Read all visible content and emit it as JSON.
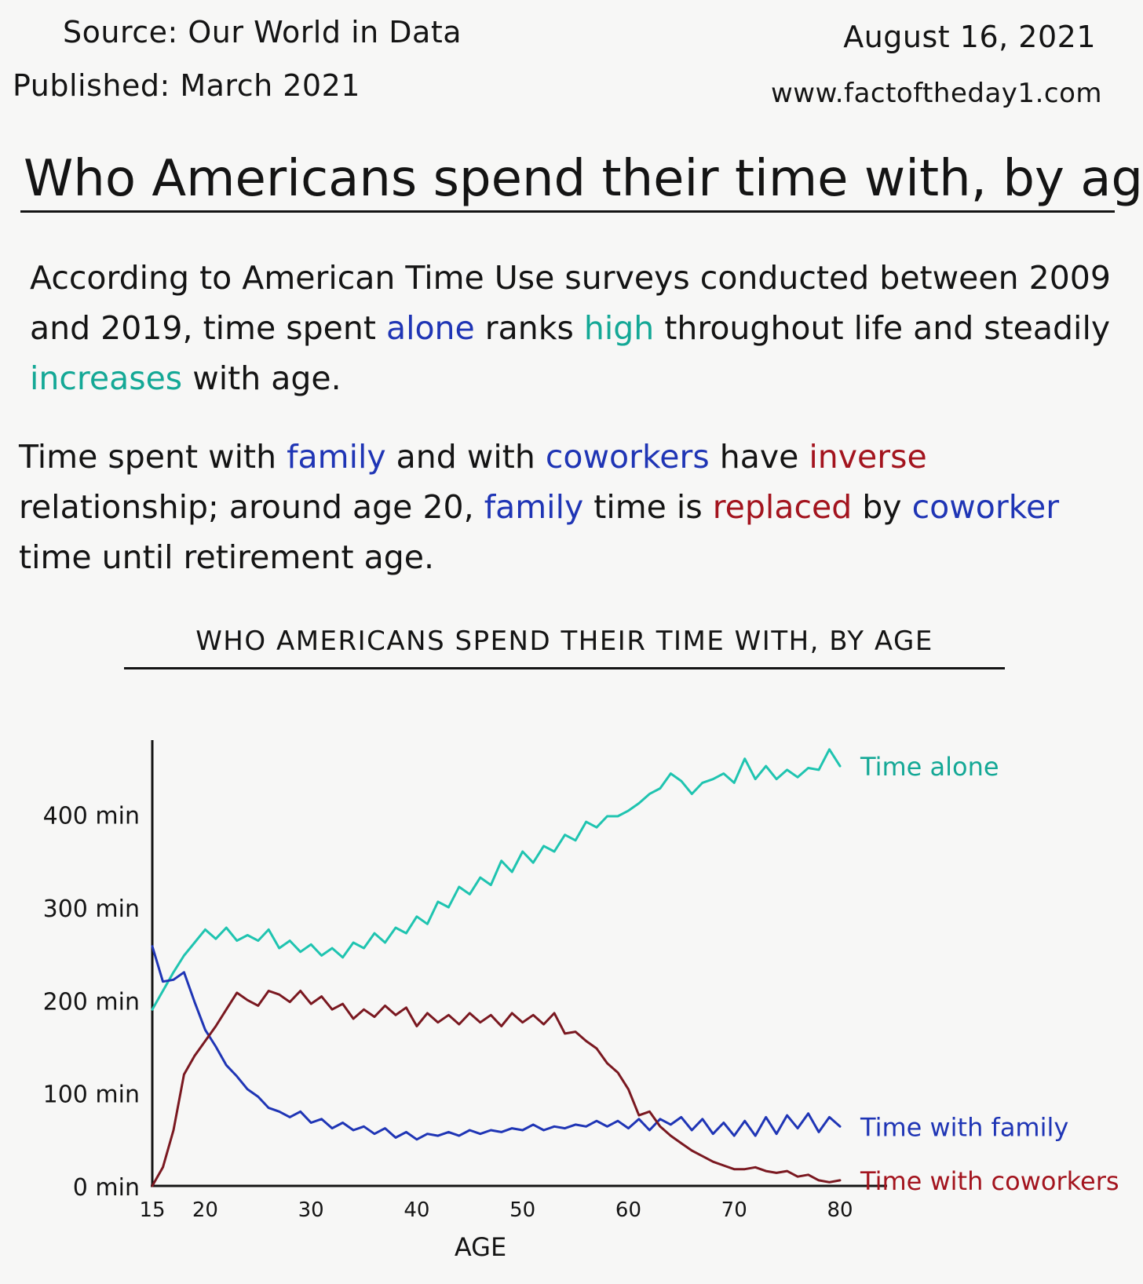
{
  "header": {
    "source": "Source:  Our World in Data",
    "published": "Published:  March 2021",
    "date": "August 16, 2021",
    "website": "www.factoftheday1.com"
  },
  "title": "Who Americans spend their time with, by age",
  "paragraphs": {
    "p1": [
      {
        "text": "According to American Time Use surveys conducted between 2009 and 2019, time spent ",
        "style": "plain"
      },
      {
        "text": "alone",
        "style": "blue"
      },
      {
        "text": " ranks ",
        "style": "plain"
      },
      {
        "text": "high",
        "style": "teal"
      },
      {
        "text": " throughout life and steadily ",
        "style": "plain"
      },
      {
        "text": "increases",
        "style": "teal"
      },
      {
        "text": " with age.",
        "style": "plain"
      }
    ],
    "p2": [
      {
        "text": "Time spent with ",
        "style": "plain"
      },
      {
        "text": "family",
        "style": "blue"
      },
      {
        "text": " and with ",
        "style": "plain"
      },
      {
        "text": "coworkers",
        "style": "blue"
      },
      {
        "text": " have ",
        "style": "plain"
      },
      {
        "text": "inverse",
        "style": "red"
      },
      {
        "text": " relationship; around age 20, ",
        "style": "plain"
      },
      {
        "text": "family",
        "style": "blue"
      },
      {
        "text": " time is ",
        "style": "plain"
      },
      {
        "text": "replaced",
        "style": "red"
      },
      {
        "text": " by ",
        "style": "plain"
      },
      {
        "text": "coworker",
        "style": "blue"
      },
      {
        "text": " time until retirement age.",
        "style": "plain"
      }
    ]
  },
  "colors": {
    "teal": "#14a896",
    "blue": "#1f35b5",
    "red": "#a3141e",
    "alone_line": "#1fc4b0",
    "family_line": "#1f35b5",
    "coworkers_line": "#7a1820",
    "ink": "#141414"
  },
  "chart_data": {
    "type": "line",
    "title": "WHO AMERICANS SPEND THEIR TIME WITH, BY AGE",
    "xlabel": "AGE",
    "ylabel": "",
    "xlim": [
      15,
      80
    ],
    "ylim": [
      0,
      480
    ],
    "x_ticks": [
      15,
      20,
      30,
      40,
      50,
      60,
      70,
      80
    ],
    "y_ticks": [
      {
        "value": 0,
        "label": "0 min"
      },
      {
        "value": 100,
        "label": "100 min"
      },
      {
        "value": 200,
        "label": "200 min"
      },
      {
        "value": 300,
        "label": "300 min"
      },
      {
        "value": 400,
        "label": "400 min"
      }
    ],
    "grid": false,
    "legend": "line-end labels",
    "series": [
      {
        "name": "Time alone",
        "color_key": "alone_line",
        "x": [
          15,
          16,
          17,
          18,
          19,
          20,
          21,
          22,
          23,
          24,
          25,
          26,
          27,
          28,
          29,
          30,
          31,
          32,
          33,
          34,
          35,
          36,
          37,
          38,
          39,
          40,
          41,
          42,
          43,
          44,
          45,
          46,
          47,
          48,
          49,
          50,
          51,
          52,
          53,
          54,
          55,
          56,
          57,
          58,
          59,
          60,
          61,
          62,
          63,
          64,
          65,
          66,
          67,
          68,
          69,
          70,
          71,
          72,
          73,
          74,
          75,
          76,
          77,
          78,
          79,
          80
        ],
        "values": [
          190,
          210,
          230,
          248,
          262,
          276,
          266,
          278,
          264,
          270,
          264,
          276,
          256,
          264,
          252,
          260,
          248,
          256,
          246,
          262,
          256,
          272,
          262,
          278,
          272,
          290,
          282,
          306,
          300,
          322,
          314,
          332,
          324,
          350,
          338,
          360,
          348,
          366,
          360,
          378,
          372,
          392,
          386,
          398,
          398,
          404,
          412,
          422,
          428,
          444,
          436,
          422,
          434,
          438,
          444,
          434,
          460,
          438,
          452,
          438,
          448,
          440,
          450,
          448,
          470,
          452
        ]
      },
      {
        "name": "Time with family",
        "color_key": "family_line",
        "x": [
          15,
          16,
          17,
          18,
          19,
          20,
          21,
          22,
          23,
          24,
          25,
          26,
          27,
          28,
          29,
          30,
          31,
          32,
          33,
          34,
          35,
          36,
          37,
          38,
          39,
          40,
          41,
          42,
          43,
          44,
          45,
          46,
          47,
          48,
          49,
          50,
          51,
          52,
          53,
          54,
          55,
          56,
          57,
          58,
          59,
          60,
          61,
          62,
          63,
          64,
          65,
          66,
          67,
          68,
          69,
          70,
          71,
          72,
          73,
          74,
          75,
          76,
          77,
          78,
          79,
          80
        ],
        "values": [
          258,
          220,
          222,
          230,
          198,
          168,
          150,
          130,
          118,
          104,
          96,
          84,
          80,
          74,
          80,
          68,
          72,
          62,
          68,
          60,
          64,
          56,
          62,
          52,
          58,
          50,
          56,
          54,
          58,
          54,
          60,
          56,
          60,
          58,
          62,
          60,
          66,
          60,
          64,
          62,
          66,
          64,
          70,
          64,
          70,
          62,
          72,
          60,
          72,
          66,
          74,
          60,
          72,
          56,
          68,
          54,
          70,
          54,
          74,
          56,
          76,
          62,
          78,
          58,
          74,
          64
        ]
      },
      {
        "name": "Time with coworkers",
        "color_key": "coworkers_line",
        "x": [
          15,
          16,
          17,
          18,
          19,
          20,
          21,
          22,
          23,
          24,
          25,
          26,
          27,
          28,
          29,
          30,
          31,
          32,
          33,
          34,
          35,
          36,
          37,
          38,
          39,
          40,
          41,
          42,
          43,
          44,
          45,
          46,
          47,
          48,
          49,
          50,
          51,
          52,
          53,
          54,
          55,
          56,
          57,
          58,
          59,
          60,
          61,
          62,
          63,
          64,
          65,
          66,
          67,
          68,
          69,
          70,
          71,
          72,
          73,
          74,
          75,
          76,
          77,
          78,
          79,
          80
        ],
        "values": [
          0,
          20,
          60,
          120,
          140,
          156,
          172,
          190,
          208,
          200,
          194,
          210,
          206,
          198,
          210,
          196,
          204,
          190,
          196,
          180,
          190,
          182,
          194,
          184,
          192,
          172,
          186,
          176,
          184,
          174,
          186,
          176,
          184,
          172,
          186,
          176,
          184,
          174,
          186,
          164,
          166,
          156,
          148,
          132,
          122,
          104,
          76,
          80,
          64,
          54,
          46,
          38,
          32,
          26,
          22,
          18,
          18,
          20,
          16,
          14,
          16,
          10,
          12,
          6,
          4,
          6
        ]
      }
    ]
  }
}
